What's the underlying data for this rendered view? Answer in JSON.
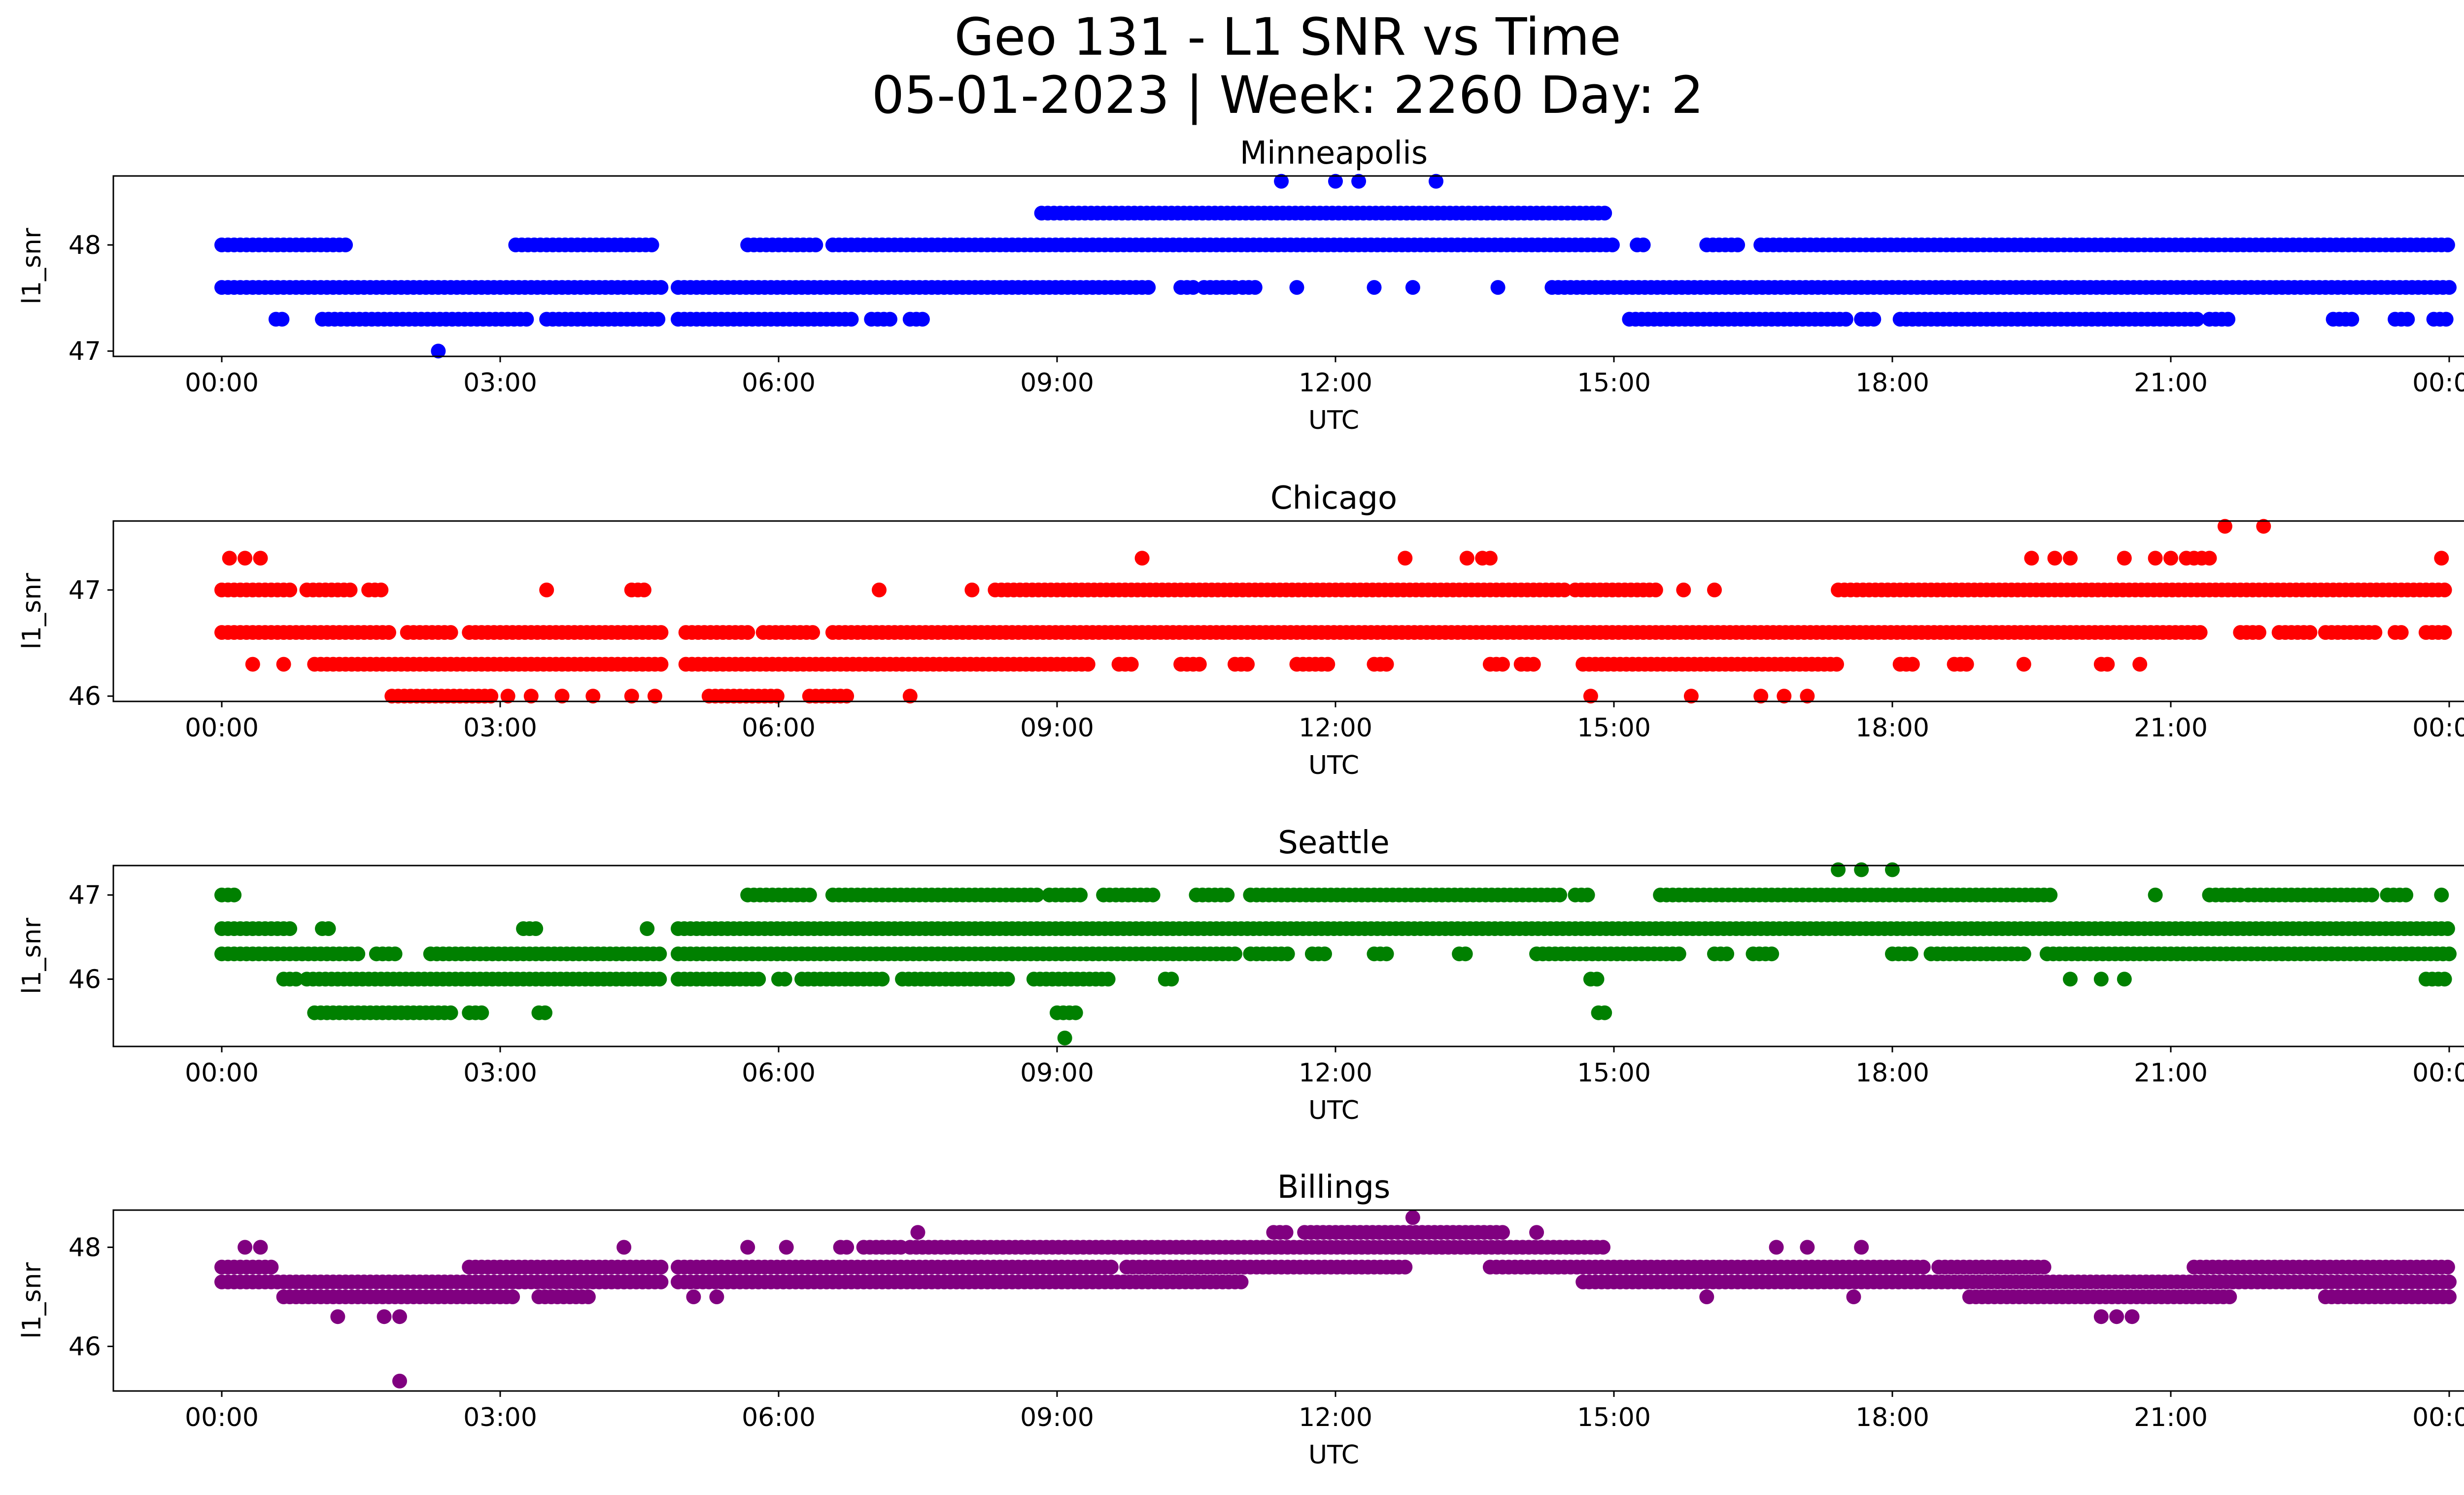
{
  "figure": {
    "title_line1": "Geo 131 - L1 SNR vs Time",
    "title_line2": "05-01-2023 | Week: 2260 Day: 2"
  },
  "chart_data": [
    {
      "type": "scatter",
      "title": "Minneapolis",
      "xlabel": "UTC",
      "ylabel": "l1_snr",
      "color": "#0000ff",
      "xlim": [
        "00:00",
        "24:00"
      ],
      "ylim": [
        46.95,
        48.65
      ],
      "yticks": [
        47,
        48
      ],
      "xticklabels": [
        "00:00",
        "03:00",
        "06:00",
        "09:00",
        "12:00",
        "15:00",
        "18:00",
        "21:00",
        "00:00"
      ],
      "levels": [
        {
          "value": 48.0,
          "ranges": [
            [
              "00:00",
              "01:22"
            ],
            [
              "03:10",
              "04:40"
            ],
            [
              "05:40",
              "06:25"
            ],
            [
              "06:35",
              "15:00"
            ],
            [
              "15:15",
              "15:20"
            ],
            [
              "16:00",
              "16:20"
            ],
            [
              "16:35",
              "24:00"
            ]
          ]
        },
        {
          "value": 47.6,
          "ranges": [
            [
              "00:00",
              "04:45"
            ],
            [
              "04:55",
              "10:00"
            ],
            [
              "10:20",
              "10:30"
            ],
            [
              "10:35",
              "10:58"
            ],
            [
              "11:00",
              "11:10"
            ],
            [
              "14:20",
              "24:00"
            ]
          ]
        },
        {
          "value": 47.3,
          "ranges": [
            [
              "00:35",
              "00:40"
            ],
            [
              "01:05",
              "03:20"
            ],
            [
              "03:30",
              "04:45"
            ],
            [
              "04:55",
              "06:50"
            ],
            [
              "07:00",
              "07:15"
            ],
            [
              "07:25",
              "07:35"
            ],
            [
              "15:10",
              "17:30"
            ],
            [
              "17:40",
              "17:50"
            ],
            [
              "18:05",
              "21:20"
            ],
            [
              "21:25",
              "21:40"
            ],
            [
              "22:45",
              "23:00"
            ],
            [
              "23:25",
              "23:35"
            ],
            [
              "23:50",
              "24:00"
            ]
          ]
        },
        {
          "value": 48.3,
          "ranges": [
            [
              "08:50",
              "14:55"
            ]
          ]
        }
      ],
      "points": [
        [
          "02:20",
          47.0
        ],
        [
          "11:25",
          48.6
        ],
        [
          "12:00",
          48.6
        ],
        [
          "12:15",
          48.6
        ],
        [
          "13:05",
          48.6
        ],
        [
          "11:35",
          47.6
        ],
        [
          "12:25",
          47.6
        ],
        [
          "12:50",
          47.6
        ],
        [
          "13:45",
          47.6
        ]
      ]
    },
    {
      "type": "scatter",
      "title": "Chicago",
      "xlabel": "UTC",
      "ylabel": "l1_snr",
      "color": "#ff0000",
      "xlim": [
        "00:00",
        "24:00"
      ],
      "ylim": [
        45.95,
        47.65
      ],
      "yticks": [
        46,
        47
      ],
      "xticklabels": [
        "00:00",
        "03:00",
        "06:00",
        "09:00",
        "12:00",
        "15:00",
        "18:00",
        "21:00",
        "00:00"
      ],
      "levels": [
        {
          "value": 47.0,
          "ranges": [
            [
              "00:00",
              "00:45"
            ],
            [
              "00:55",
              "01:25"
            ],
            [
              "01:35",
              "01:45"
            ],
            [
              "04:25",
              "04:35"
            ],
            [
              "08:20",
              "14:30"
            ],
            [
              "14:35",
              "15:30"
            ],
            [
              "17:25",
              "24:00"
            ]
          ]
        },
        {
          "value": 46.6,
          "ranges": [
            [
              "00:00",
              "01:50"
            ],
            [
              "02:00",
              "02:30"
            ],
            [
              "02:40",
              "04:45"
            ],
            [
              "05:00",
              "05:40"
            ],
            [
              "05:50",
              "06:25"
            ],
            [
              "06:35",
              "21:20"
            ],
            [
              "21:45",
              "22:00"
            ],
            [
              "22:10",
              "22:30"
            ],
            [
              "22:40",
              "23:15"
            ],
            [
              "23:25",
              "23:30"
            ],
            [
              "23:45",
              "24:00"
            ]
          ]
        },
        {
          "value": 46.3,
          "ranges": [
            [
              "01:00",
              "04:45"
            ],
            [
              "05:00",
              "09:20"
            ],
            [
              "09:40",
              "09:50"
            ],
            [
              "10:20",
              "10:35"
            ],
            [
              "10:55",
              "11:05"
            ],
            [
              "11:35",
              "11:55"
            ],
            [
              "12:25",
              "12:35"
            ],
            [
              "13:40",
              "13:50"
            ],
            [
              "14:00",
              "14:10"
            ],
            [
              "14:40",
              "17:25"
            ],
            [
              "18:05",
              "18:15"
            ],
            [
              "18:40",
              "18:50"
            ],
            [
              "20:15",
              "20:20"
            ]
          ]
        },
        {
          "value": 46.0,
          "ranges": [
            [
              "01:50",
              "02:55"
            ],
            [
              "05:15",
              "06:00"
            ],
            [
              "06:20",
              "06:45"
            ]
          ]
        }
      ],
      "points": [
        [
          "00:05",
          47.3
        ],
        [
          "00:15",
          47.3
        ],
        [
          "00:25",
          47.3
        ],
        [
          "09:55",
          47.3
        ],
        [
          "12:45",
          47.3
        ],
        [
          "13:25",
          47.3
        ],
        [
          "13:35",
          47.3
        ],
        [
          "13:40",
          47.3
        ],
        [
          "19:30",
          47.3
        ],
        [
          "19:45",
          47.3
        ],
        [
          "19:55",
          47.3
        ],
        [
          "20:30",
          47.3
        ],
        [
          "20:50",
          47.3
        ],
        [
          "21:00",
          47.3
        ],
        [
          "21:10",
          47.3
        ],
        [
          "21:15",
          47.3
        ],
        [
          "21:20",
          47.3
        ],
        [
          "21:35",
          47.6
        ],
        [
          "22:00",
          47.6
        ],
        [
          "21:25",
          47.3
        ],
        [
          "23:55",
          47.3
        ],
        [
          "00:20",
          46.3
        ],
        [
          "00:40",
          46.3
        ],
        [
          "19:25",
          46.3
        ],
        [
          "20:40",
          46.3
        ],
        [
          "03:05",
          46.0
        ],
        [
          "03:20",
          46.0
        ],
        [
          "03:40",
          46.0
        ],
        [
          "04:00",
          46.0
        ],
        [
          "04:25",
          46.0
        ],
        [
          "04:40",
          46.0
        ],
        [
          "07:25",
          46.0
        ],
        [
          "14:45",
          46.0
        ],
        [
          "15:50",
          46.0
        ],
        [
          "16:35",
          46.0
        ],
        [
          "16:50",
          46.0
        ],
        [
          "17:05",
          46.0
        ],
        [
          "03:30",
          47.0
        ],
        [
          "07:05",
          47.0
        ],
        [
          "08:05",
          47.0
        ],
        [
          "15:45",
          47.0
        ],
        [
          "16:05",
          47.0
        ]
      ]
    },
    {
      "type": "scatter",
      "title": "Seattle",
      "xlabel": "UTC",
      "ylabel": "l1_snr",
      "color": "#008000",
      "xlim": [
        "00:00",
        "24:00"
      ],
      "ylim": [
        45.2,
        47.35
      ],
      "yticks": [
        46,
        47
      ],
      "xticklabels": [
        "00:00",
        "03:00",
        "06:00",
        "09:00",
        "12:00",
        "15:00",
        "18:00",
        "21:00",
        "00:00"
      ],
      "levels": [
        {
          "value": 47.0,
          "ranges": [
            [
              "00:00",
              "00:10"
            ],
            [
              "05:40",
              "06:20"
            ],
            [
              "06:35",
              "08:50"
            ],
            [
              "08:55",
              "09:15"
            ],
            [
              "09:30",
              "10:05"
            ],
            [
              "10:30",
              "10:50"
            ],
            [
              "11:05",
              "14:25"
            ],
            [
              "14:35",
              "14:45"
            ],
            [
              "15:30",
              "19:45"
            ],
            [
              "21:25",
              "21:45"
            ],
            [
              "21:50",
              "23:10"
            ],
            [
              "23:20",
              "23:35"
            ]
          ]
        },
        {
          "value": 46.6,
          "ranges": [
            [
              "00:00",
              "00:45"
            ],
            [
              "01:05",
              "01:10"
            ],
            [
              "03:15",
              "03:25"
            ],
            [
              "04:55",
              "24:00"
            ]
          ]
        },
        {
          "value": 46.3,
          "ranges": [
            [
              "00:00",
              "01:30"
            ],
            [
              "01:40",
              "01:55"
            ],
            [
              "02:15",
              "04:45"
            ],
            [
              "04:55",
              "10:55"
            ],
            [
              "11:05",
              "11:30"
            ],
            [
              "11:45",
              "11:55"
            ],
            [
              "12:25",
              "12:35"
            ],
            [
              "13:20",
              "13:25"
            ],
            [
              "14:10",
              "15:45"
            ],
            [
              "16:05",
              "16:15"
            ],
            [
              "16:30",
              "16:45"
            ],
            [
              "18:00",
              "18:15"
            ],
            [
              "18:25",
              "19:25"
            ],
            [
              "19:40",
              "24:00"
            ]
          ]
        },
        {
          "value": 46.0,
          "ranges": [
            [
              "00:40",
              "00:50"
            ],
            [
              "00:55",
              "04:45"
            ],
            [
              "04:55",
              "05:50"
            ],
            [
              "06:00",
              "06:05"
            ],
            [
              "06:15",
              "07:10"
            ],
            [
              "07:20",
              "08:30"
            ],
            [
              "08:45",
              "09:35"
            ],
            [
              "10:10",
              "10:15"
            ],
            [
              "14:45",
              "14:50"
            ],
            [
              "23:45",
              "24:00"
            ]
          ]
        },
        {
          "value": 45.6,
          "ranges": [
            [
              "01:00",
              "02:30"
            ],
            [
              "02:40",
              "02:50"
            ],
            [
              "03:25",
              "03:30"
            ],
            [
              "09:00",
              "09:15"
            ],
            [
              "14:50",
              "14:55"
            ]
          ]
        }
      ],
      "points": [
        [
          "09:05",
          45.3
        ],
        [
          "17:25",
          47.3
        ],
        [
          "17:40",
          47.3
        ],
        [
          "18:00",
          47.3
        ],
        [
          "04:35",
          46.6
        ],
        [
          "19:55",
          46.0
        ],
        [
          "20:15",
          46.0
        ],
        [
          "20:30",
          46.0
        ],
        [
          "20:50",
          47.0
        ],
        [
          "23:55",
          47.0
        ]
      ]
    },
    {
      "type": "scatter",
      "title": "Billings",
      "xlabel": "UTC",
      "ylabel": "l1_snr",
      "color": "#800080",
      "xlim": [
        "00:00",
        "24:00"
      ],
      "ylim": [
        45.1,
        48.75
      ],
      "yticks": [
        46,
        48
      ],
      "xticklabels": [
        "00:00",
        "03:00",
        "06:00",
        "09:00",
        "12:00",
        "15:00",
        "18:00",
        "21:00",
        "00:00"
      ],
      "levels": [
        {
          "value": 48.0,
          "ranges": [
            [
              "06:40",
              "06:45"
            ],
            [
              "06:55",
              "07:20"
            ],
            [
              "07:25",
              "14:55"
            ]
          ]
        },
        {
          "value": 47.6,
          "ranges": [
            [
              "00:00",
              "00:35"
            ],
            [
              "02:40",
              "04:45"
            ],
            [
              "04:55",
              "09:35"
            ],
            [
              "09:45",
              "12:45"
            ],
            [
              "13:40",
              "18:20"
            ],
            [
              "18:30",
              "19:40"
            ],
            [
              "21:15",
              "24:00"
            ]
          ]
        },
        {
          "value": 47.3,
          "ranges": [
            [
              "00:00",
              "04:45"
            ],
            [
              "04:55",
              "11:00"
            ],
            [
              "14:40",
              "24:00"
            ]
          ]
        },
        {
          "value": 47.0,
          "ranges": [
            [
              "00:40",
              "03:10"
            ],
            [
              "03:25",
              "04:00"
            ],
            [
              "18:50",
              "21:40"
            ],
            [
              "22:40",
              "24:00"
            ]
          ]
        },
        {
          "value": 48.3,
          "ranges": [
            [
              "11:20",
              "11:30"
            ],
            [
              "11:40",
              "13:50"
            ]
          ]
        }
      ],
      "points": [
        [
          "01:15",
          46.6
        ],
        [
          "01:45",
          46.6
        ],
        [
          "01:55",
          46.6
        ],
        [
          "01:55",
          45.3
        ],
        [
          "12:50",
          48.6
        ],
        [
          "07:30",
          48.3
        ],
        [
          "14:10",
          48.3
        ],
        [
          "20:15",
          46.6
        ],
        [
          "20:25",
          46.6
        ],
        [
          "20:35",
          46.6
        ],
        [
          "16:00",
          47.0
        ],
        [
          "17:35",
          47.0
        ],
        [
          "05:05",
          47.0
        ],
        [
          "05:20",
          47.0
        ],
        [
          "00:15",
          48.0
        ],
        [
          "00:25",
          48.0
        ],
        [
          "04:20",
          48.0
        ],
        [
          "05:40",
          48.0
        ],
        [
          "06:05",
          48.0
        ],
        [
          "16:45",
          48.0
        ],
        [
          "17:05",
          48.0
        ],
        [
          "17:40",
          48.0
        ]
      ]
    }
  ]
}
